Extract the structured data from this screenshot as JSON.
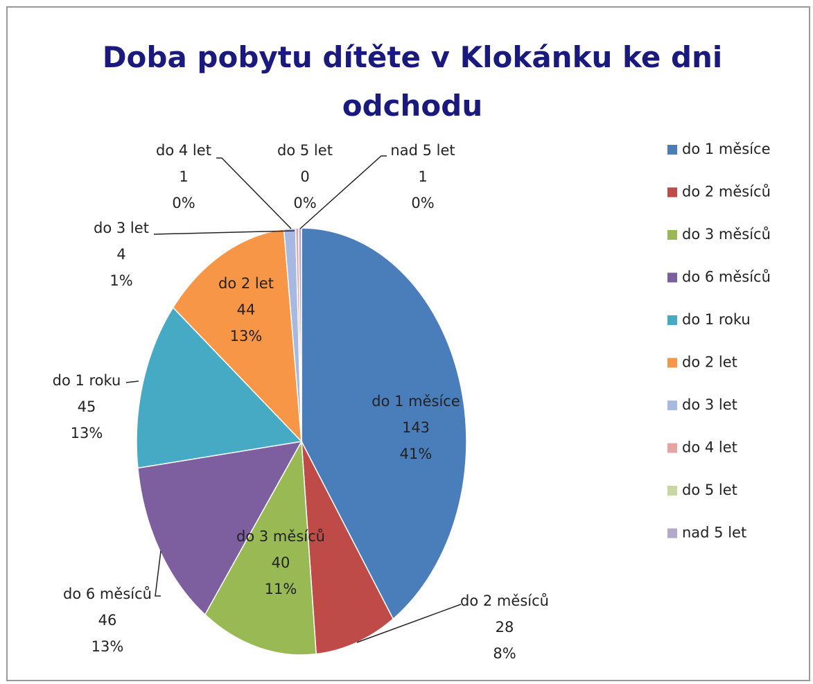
{
  "chart_data": {
    "type": "pie",
    "title": "Doba pobytu dítěte v Klokánku ke dni odchodu",
    "categories": [
      "do 1 měsíce",
      "do 2 měsíců",
      "do 3 měsíců",
      "do 6 měsíců",
      "do 1 roku",
      "do 2 let",
      "do 3 let",
      "do 4 let",
      "do 5 let",
      "nad 5 let"
    ],
    "values": [
      143,
      28,
      40,
      46,
      45,
      44,
      4,
      1,
      0,
      1
    ],
    "percent_labels": [
      "41%",
      "8%",
      "11%",
      "13%",
      "13%",
      "13%",
      "1%",
      "0%",
      "0%",
      "0%"
    ],
    "colors": [
      "#4a7ebb",
      "#be4b48",
      "#98b954",
      "#7d5fa0",
      "#46aac5",
      "#f79646",
      "#a7b9e0",
      "#e6a3a2",
      "#c6d9a0",
      "#b3a9cd"
    ],
    "legend": "right"
  }
}
